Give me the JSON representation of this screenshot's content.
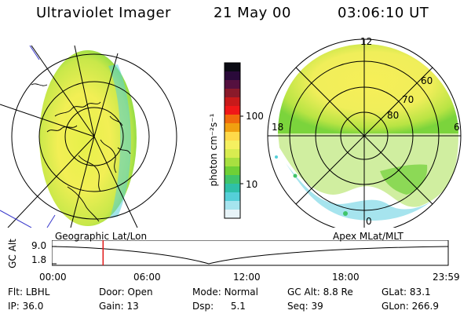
{
  "header": {
    "instrument": "Ultraviolet Imager",
    "date": "21 May 00",
    "time": "03:06:10 UT"
  },
  "colorbar": {
    "unit_label": "photon cm⁻²s⁻¹",
    "ticks": [
      "100",
      "10"
    ],
    "colors": [
      "#0b0b14",
      "#2a0a3a",
      "#55103f",
      "#8a1a2a",
      "#c81a1a",
      "#f01818",
      "#f06a0c",
      "#f0a010",
      "#ffd94a",
      "#f5f060",
      "#d8ec50",
      "#a8e040",
      "#6fd036",
      "#40c46a",
      "#2fc0a8",
      "#55cfd8",
      "#a6e4ee",
      "#e8f4f8"
    ]
  },
  "left_panel": {
    "projection_label": "Geographic Lat/Lon"
  },
  "right_panel": {
    "projection_label": "Apex MLat/MLT",
    "mlt_labels": {
      "top": "12",
      "left": "18",
      "right": "6",
      "bottom": "0"
    },
    "lat_labels": [
      "60",
      "70",
      "80"
    ]
  },
  "timeline": {
    "axis_label": "GC Alt",
    "y_ticks": [
      "9.0",
      "1.8"
    ],
    "x_ticks": [
      "00:00",
      "06:00",
      "12:00",
      "18:00",
      "23:59"
    ],
    "current_time_marker": "03:06",
    "marker_color": "#e01818"
  },
  "params": {
    "flt_label": "Flt:",
    "flt_value": "LBHL",
    "ip_label": "IP:",
    "ip_value": "36.0",
    "door_label": "Door:",
    "door_value": "Open",
    "gain_label": "Gain:",
    "gain_value": "13",
    "mode_label": "Mode:",
    "mode_value": "Normal",
    "dsp_label": "Dsp:",
    "dsp_value": "5.1",
    "gcalt_label": "GC Alt:",
    "gcalt_value": "8.8 Re",
    "seq_label": "Seq:",
    "seq_value": "39",
    "glat_label": "GLat:",
    "glat_value": "83.1",
    "glon_label": "GLon:",
    "glon_value": "266.9"
  }
}
